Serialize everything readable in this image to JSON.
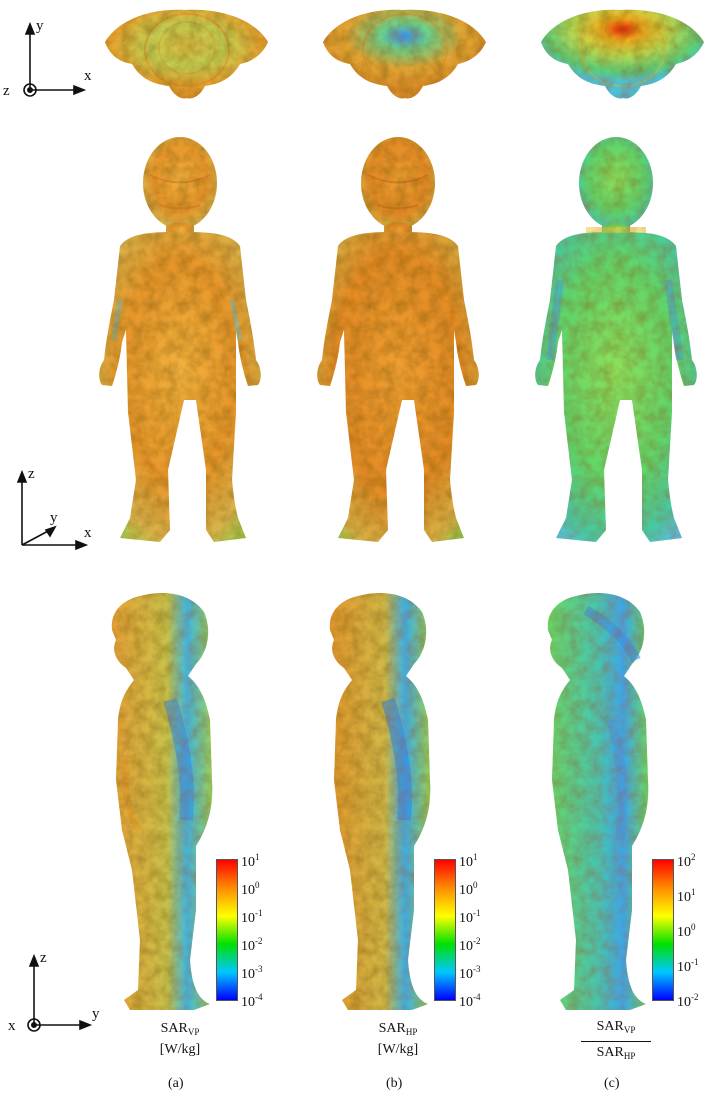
{
  "axes": {
    "top": {
      "h": "x",
      "v": "y",
      "out": "z"
    },
    "front": {
      "h": "x",
      "v": "z",
      "depth": "y"
    },
    "side": {
      "h": "y",
      "v": "z",
      "out": "x"
    }
  },
  "colorbars": [
    {
      "ticks": [
        {
          "base": "10",
          "exp": "1"
        },
        {
          "base": "10",
          "exp": "0"
        },
        {
          "base": "10",
          "exp": "-1"
        },
        {
          "base": "10",
          "exp": "-2"
        },
        {
          "base": "10",
          "exp": "-3"
        },
        {
          "base": "10",
          "exp": "-4"
        }
      ]
    },
    {
      "ticks": [
        {
          "base": "10",
          "exp": "1"
        },
        {
          "base": "10",
          "exp": "0"
        },
        {
          "base": "10",
          "exp": "-1"
        },
        {
          "base": "10",
          "exp": "-2"
        },
        {
          "base": "10",
          "exp": "-3"
        },
        {
          "base": "10",
          "exp": "-4"
        }
      ]
    },
    {
      "ticks": [
        {
          "base": "10",
          "exp": "2"
        },
        {
          "base": "10",
          "exp": "1"
        },
        {
          "base": "10",
          "exp": "0"
        },
        {
          "base": "10",
          "exp": "-1"
        },
        {
          "base": "10",
          "exp": "-2"
        }
      ]
    }
  ],
  "captions": {
    "a": {
      "main": "SAR",
      "sub": "VP",
      "unit": "[W/kg]",
      "letter": "(a)"
    },
    "b": {
      "main": "SAR",
      "sub": "HP",
      "unit": "[W/kg]",
      "letter": "(b)"
    },
    "c": {
      "num_main": "SAR",
      "num_sub": "VP",
      "den_main": "SAR",
      "den_sub": "HP",
      "letter": "(c)"
    }
  },
  "colors": {
    "scale": [
      "#ff0000",
      "#ff8c00",
      "#ffff00",
      "#00e000",
      "#00c8ff",
      "#0000ff"
    ],
    "body_a": "#e9a23a",
    "body_b": "#e59a33",
    "body_c": "#5fd66a"
  }
}
